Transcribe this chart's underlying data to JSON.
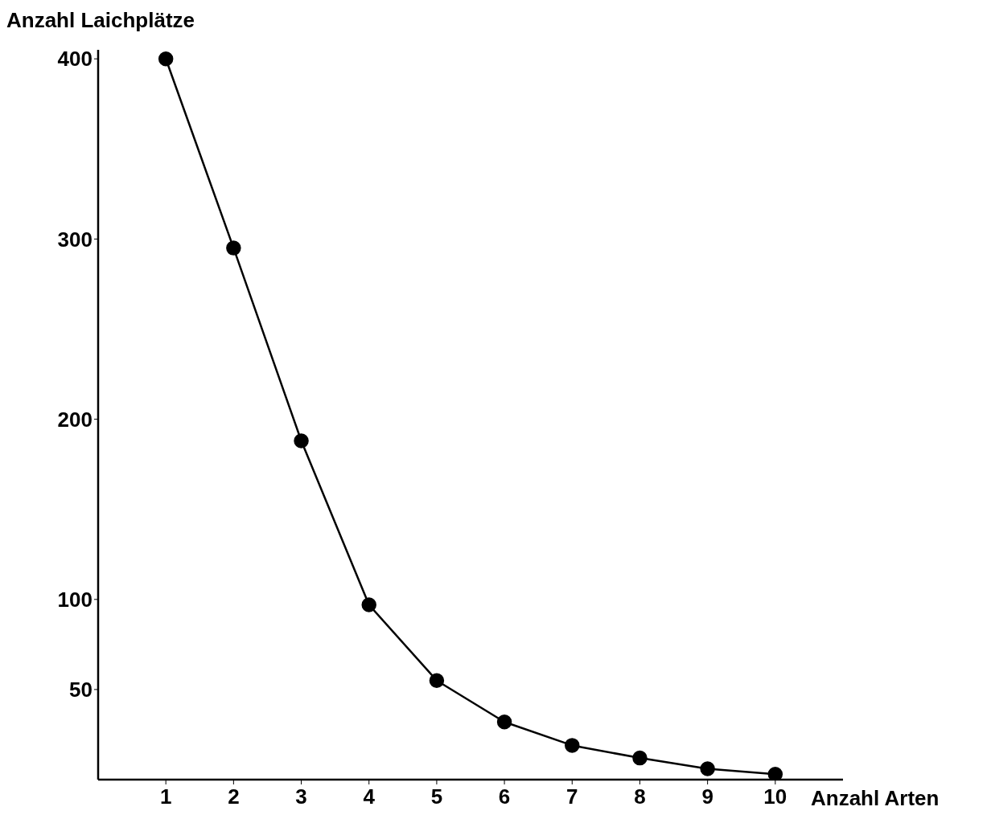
{
  "chart_data": {
    "type": "line",
    "xlabel": "Anzahl Arten",
    "ylabel": "Anzahl Laichplätze",
    "x": [
      1,
      2,
      3,
      4,
      5,
      6,
      7,
      8,
      9,
      10
    ],
    "series": [
      {
        "color": "#000000",
        "values": [
          400,
          295,
          188,
          97,
          55,
          32,
          19,
          12,
          6,
          3
        ]
      }
    ],
    "xlim": [
      0,
      11
    ],
    "xticks": [
      1,
      2,
      3,
      4,
      5,
      6,
      7,
      8,
      9,
      10
    ],
    "ylim": [
      0,
      405
    ],
    "yticks": [
      50,
      100,
      200,
      300,
      400
    ],
    "grid": false,
    "legend": false,
    "marker": "circle",
    "line_style": "solid"
  }
}
